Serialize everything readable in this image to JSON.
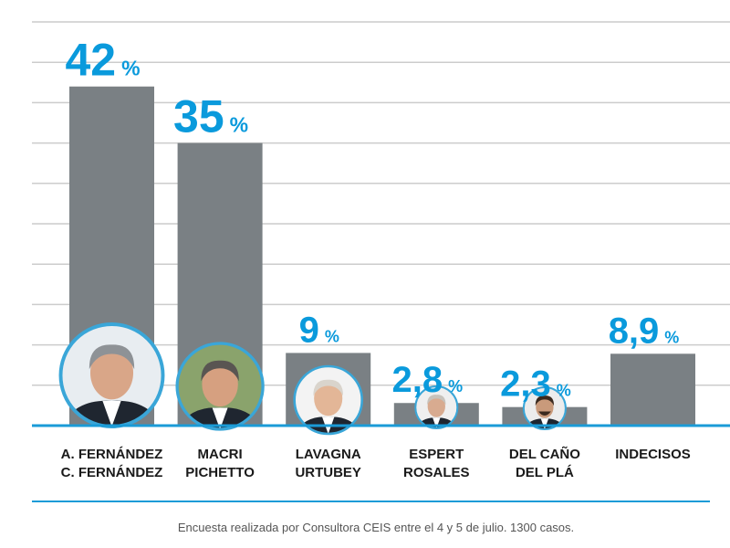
{
  "chart_data": {
    "type": "bar",
    "categories": [
      [
        "A. FERNÁNDEZ",
        "C. FERNÁNDEZ"
      ],
      [
        "MACRI",
        "PICHETTO"
      ],
      [
        "LAVAGNA",
        "URTUBEY"
      ],
      [
        "ESPERT",
        "ROSALES"
      ],
      [
        "DEL CAÑO",
        "DEL PLÁ"
      ],
      [
        "INDECISOS"
      ]
    ],
    "values": [
      42,
      35,
      9,
      2.8,
      2.3,
      8.9
    ],
    "value_labels": [
      "42",
      "35",
      "9",
      "2,8",
      "2,3",
      "8,9"
    ],
    "value_suffix": "%",
    "portraits": [
      "portrait-a-fernandez-icon",
      "portrait-macri-icon",
      "portrait-lavagna-icon",
      "portrait-espert-icon",
      "portrait-del-cano-icon",
      null
    ],
    "ylim": [
      0,
      50
    ],
    "grid": true,
    "legend": "none"
  },
  "footnote": "Encuesta realizada por Consultora CEIS entre el 4 y 5 de julio. 1300 casos.",
  "colors": {
    "bar": "#7a8084",
    "value_label": "#0a9adc",
    "baseline": "#1a9bd7",
    "grid": "#cccccc",
    "category_text": "#1a1a1a",
    "footnote_text": "#555555",
    "portrait_ring": "#3aa6d8"
  }
}
